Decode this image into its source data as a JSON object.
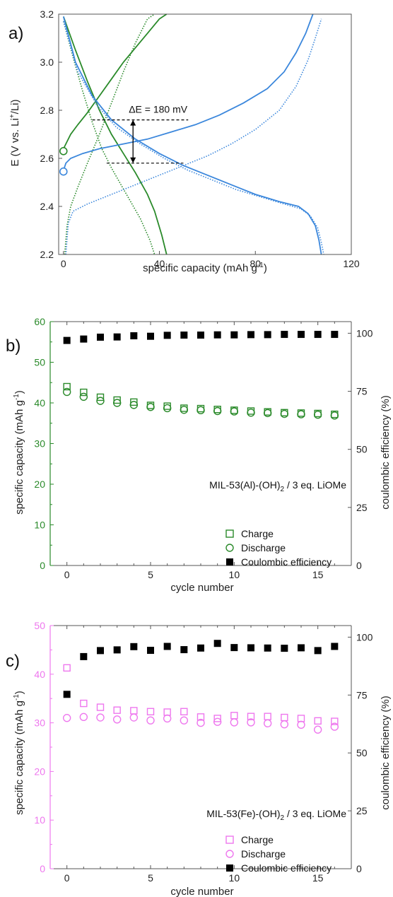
{
  "panels": [
    {
      "label": "a)",
      "colors": {
        "green": "#2a8a2a",
        "blue": "#3b87dc"
      },
      "chart_data": {
        "type": "line",
        "xlabel": "specific capacity (mAh g",
        "xlabel_sup": "-1",
        "xlabel_end": ")",
        "ylabel": "E (V vs. Li",
        "ylabel_sup": "+",
        "ylabel_end": "/Li)",
        "xlim": [
          -2,
          120
        ],
        "ylim": [
          2.2,
          3.2
        ],
        "xticks": [
          "0",
          "40",
          "80",
          "120"
        ],
        "yticks": [
          "2.2",
          "2.4",
          "2.6",
          "2.8",
          "3.0",
          "3.2"
        ],
        "annotation": "ΔE = 180 mV",
        "annotation_levels": [
          2.76,
          2.58
        ],
        "series": [
          {
            "color": "green",
            "style": "solid",
            "x": [
              0,
              1,
              3,
              6,
              10,
              15,
              20,
              25,
              30,
              35,
              40,
              43
            ],
            "y": [
              2.64,
              2.66,
              2.7,
              2.74,
              2.79,
              2.86,
              2.93,
              3.0,
              3.06,
              3.12,
              3.18,
              3.2
            ]
          },
          {
            "color": "green",
            "style": "solid",
            "x": [
              0,
              5,
              10,
              15,
              20,
              25,
              30,
              35,
              38,
              41,
              43
            ],
            "y": [
              3.19,
              3.05,
              2.92,
              2.8,
              2.7,
              2.62,
              2.54,
              2.45,
              2.38,
              2.28,
              2.2
            ]
          },
          {
            "color": "green",
            "style": "dotted",
            "x": [
              0.5,
              1.5,
              3,
              6,
              10,
              15,
              20,
              25,
              30,
              35,
              38
            ],
            "y": [
              2.2,
              2.32,
              2.4,
              2.48,
              2.58,
              2.7,
              2.83,
              2.96,
              3.08,
              3.18,
              3.2
            ]
          },
          {
            "color": "green",
            "style": "dotted",
            "x": [
              0,
              4,
              8,
              12,
              16,
              20,
              24,
              28,
              32,
              36,
              38
            ],
            "y": [
              3.17,
              3.02,
              2.88,
              2.75,
              2.64,
              2.56,
              2.49,
              2.42,
              2.35,
              2.26,
              2.2
            ]
          },
          {
            "color": "blue",
            "style": "solid",
            "x": [
              0,
              1,
              3,
              8,
              15,
              25,
              35,
              45,
              55,
              65,
              75,
              85,
              92,
              97,
              101,
              104
            ],
            "y": [
              2.55,
              2.58,
              2.6,
              2.62,
              2.64,
              2.66,
              2.68,
              2.71,
              2.74,
              2.78,
              2.83,
              2.89,
              2.96,
              3.04,
              3.12,
              3.2
            ]
          },
          {
            "color": "blue",
            "style": "solid",
            "x": [
              0,
              5,
              12,
              20,
              30,
              40,
              50,
              60,
              70,
              80,
              90,
              98,
              102,
              105,
              106.5,
              107.5
            ],
            "y": [
              3.19,
              3.0,
              2.86,
              2.76,
              2.68,
              2.62,
              2.57,
              2.53,
              2.49,
              2.45,
              2.42,
              2.4,
              2.37,
              2.32,
              2.26,
              2.2
            ]
          },
          {
            "color": "blue",
            "style": "dotted",
            "x": [
              1,
              2,
              4,
              10,
              20,
              30,
              40,
              50,
              60,
              70,
              80,
              90,
              97,
              102,
              105,
              107.5
            ],
            "y": [
              2.2,
              2.33,
              2.38,
              2.41,
              2.45,
              2.49,
              2.53,
              2.57,
              2.61,
              2.66,
              2.72,
              2.8,
              2.9,
              3.01,
              3.1,
              3.18
            ]
          },
          {
            "color": "blue",
            "style": "dotted",
            "x": [
              0,
              6,
              14,
              22,
              32,
              42,
              52,
              62,
              72,
              82,
              92,
              99,
              103,
              106,
              107.5,
              108.5
            ],
            "y": [
              3.17,
              2.96,
              2.82,
              2.73,
              2.66,
              2.6,
              2.55,
              2.51,
              2.47,
              2.44,
              2.41,
              2.39,
              2.36,
              2.31,
              2.25,
              2.2
            ]
          }
        ],
        "markers": [
          {
            "color": "green",
            "x": 0,
            "y": 2.63
          },
          {
            "color": "blue",
            "x": 0,
            "y": 2.545
          }
        ]
      }
    },
    {
      "label": "b)",
      "colors": {
        "accent": "#2a8a2a",
        "black": "#000000"
      },
      "chart_data": {
        "type": "scatter",
        "xlabel": "cycle number",
        "ylabel": "specific capacity (mAh g",
        "ylabel_sup": "-1",
        "ylabel_end": ")",
        "y2label": "coulombic efficiency (%)",
        "xlim": [
          -1,
          17
        ],
        "ylim": [
          0,
          60
        ],
        "y2lim": [
          0,
          105
        ],
        "xticks": [
          "0",
          "5",
          "10",
          "15"
        ],
        "yticks": [
          "0",
          "10",
          "20",
          "30",
          "40",
          "50",
          "60"
        ],
        "y2ticks": [
          "0",
          "25",
          "50",
          "75",
          "100"
        ],
        "annotation": "MIL-53(Al)-(OH)",
        "annotation_sub": "2",
        "annotation_end": " / 3 eq. LiOMe",
        "legend": [
          "Charge",
          "Discharge",
          "Coulombic efficiency"
        ],
        "x": [
          0,
          1,
          2,
          3,
          4,
          5,
          6,
          7,
          8,
          9,
          10,
          11,
          12,
          13,
          14,
          15,
          16
        ],
        "charge": [
          44.0,
          42.6,
          41.4,
          40.7,
          40.2,
          39.4,
          39.2,
          38.7,
          38.6,
          38.4,
          38.2,
          38.0,
          37.8,
          37.6,
          37.5,
          37.4,
          37.2
        ],
        "discharge": [
          42.7,
          41.5,
          40.5,
          40.0,
          39.5,
          39.0,
          38.7,
          38.3,
          38.2,
          38.0,
          37.9,
          37.6,
          37.5,
          37.3,
          37.2,
          37.1,
          36.9
        ],
        "efficiency": [
          96.9,
          97.5,
          98.3,
          98.4,
          98.9,
          98.7,
          99.1,
          99.2,
          99.2,
          99.3,
          99.3,
          99.4,
          99.4,
          99.5,
          99.5,
          99.5,
          99.5
        ]
      }
    },
    {
      "label": "c)",
      "colors": {
        "accent": "#ee77ee",
        "black": "#000000"
      },
      "chart_data": {
        "type": "scatter",
        "xlabel": "cycle number",
        "ylabel": "specific capacity (mAh g",
        "ylabel_sup": "-1",
        "ylabel_end": ")",
        "y2label": "coulombic efficiency (%)",
        "xlim": [
          -1,
          17
        ],
        "ylim": [
          0,
          50
        ],
        "y2lim": [
          0,
          105
        ],
        "xticks": [
          "0",
          "5",
          "10",
          "15"
        ],
        "yticks": [
          "0",
          "10",
          "20",
          "30",
          "40",
          "50"
        ],
        "y2ticks": [
          "0",
          "25",
          "50",
          "75",
          "100"
        ],
        "annotation": "MIL-53(Fe)-(OH)",
        "annotation_sub": "2",
        "annotation_end": " / 3 eq. LiOMe",
        "legend": [
          "Charge",
          "Discharge",
          "Coulombic efficiency"
        ],
        "x": [
          0,
          1,
          2,
          3,
          4,
          5,
          6,
          7,
          8,
          9,
          10,
          11,
          12,
          13,
          14,
          15,
          16
        ],
        "charge": [
          41.3,
          34.0,
          33.2,
          32.6,
          32.5,
          32.3,
          32.2,
          32.3,
          31.2,
          30.9,
          31.5,
          31.3,
          31.3,
          31.1,
          30.9,
          30.4,
          30.3
        ],
        "discharge": [
          31.0,
          31.2,
          31.1,
          30.7,
          31.1,
          30.5,
          30.9,
          30.5,
          30.0,
          30.2,
          30.1,
          30.1,
          29.9,
          29.7,
          29.6,
          28.6,
          29.2
        ],
        "efficiency": [
          75.3,
          91.6,
          94.2,
          94.5,
          95.9,
          94.3,
          96.0,
          94.6,
          95.3,
          97.3,
          95.5,
          95.4,
          95.3,
          95.2,
          95.4,
          94.2,
          96.0
        ]
      }
    }
  ]
}
